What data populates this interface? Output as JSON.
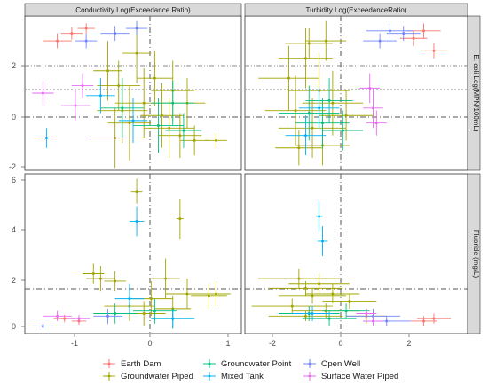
{
  "chart_data": {
    "type": "scatter",
    "error_bars": true,
    "facet_columns": [
      "Conductivity Log(Exceedance Ratio)",
      "Turbidity Log(ExceedanceRatio)"
    ],
    "facet_rows": [
      "E. coli Log(MPN/100mL)",
      "Fluoride (mg/L)"
    ],
    "x_ticks": {
      "conductivity": [
        "-1",
        "0",
        "1"
      ],
      "turbidity": [
        "-2",
        "0",
        "2"
      ]
    },
    "y_ticks": {
      "ecoli": [
        "-2",
        "0",
        "2"
      ],
      "fluoride": [
        "0",
        "2",
        "4",
        "6"
      ]
    },
    "xlim": {
      "conductivity": [
        -1.75,
        1.25
      ],
      "turbidity": [
        -2.8,
        3.8
      ]
    },
    "ylim": {
      "ecoli": [
        -2.2,
        4.0
      ],
      "fluoride": [
        -0.2,
        6.2
      ]
    },
    "reference_lines": {
      "vertical_x": 0,
      "ecoli_horizontal": [
        0,
        1.1,
        1.85
      ],
      "fluoride_horizontal": [
        1.5
      ]
    },
    "legend": {
      "placement": "bottom",
      "entries": [
        {
          "label": "Earth Dam",
          "color": "#f8766d"
        },
        {
          "label": "Groundwater Piped",
          "color": "#a3a500"
        },
        {
          "label": "Groundwater Point",
          "color": "#00bf7d"
        },
        {
          "label": "Mixed Tank",
          "color": "#00b0f6"
        },
        {
          "label": "Open Well",
          "color": "#6f84ff"
        },
        {
          "label": "Surface Water Piped",
          "color": "#e76bf3"
        }
      ]
    },
    "series": [
      {
        "name": "Earth Dam",
        "color": "#f8766d",
        "points": {
          "cond_ecoli": [
            [
              -1.3,
              3.0,
              0.2,
              0.3
            ],
            [
              -1.1,
              3.3,
              0.15,
              0.25
            ],
            [
              -0.9,
              3.5,
              0.12,
              0.2
            ]
          ],
          "turb_ecoli": [
            [
              2.5,
              3.4,
              0.5,
              0.3
            ],
            [
              2.8,
              2.6,
              0.4,
              0.3
            ],
            [
              2.2,
              3.1,
              0.4,
              0.3
            ]
          ],
          "cond_fluor": [
            [
              -1.2,
              0.4,
              0.15,
              0.15
            ],
            [
              -1.0,
              0.3,
              0.1,
              0.15
            ]
          ],
          "turb_fluor": [
            [
              2.8,
              0.4,
              0.5,
              0.2
            ],
            [
              2.5,
              0.3,
              0.4,
              0.2
            ]
          ]
        }
      },
      {
        "name": "Groundwater Piped",
        "color": "#a3a500",
        "points": {
          "cond_ecoli": [
            [
              -0.6,
              1.8,
              0.2,
              1.2
            ],
            [
              -0.45,
              1.2,
              0.3,
              1.0
            ],
            [
              -0.4,
              0.2,
              0.35,
              1.3
            ],
            [
              -0.3,
              -0.3,
              0.3,
              1.5
            ],
            [
              -0.2,
              2.5,
              0.2,
              1.2
            ],
            [
              -0.1,
              0.5,
              0.4,
              1.4
            ],
            [
              0.05,
              1.5,
              0.25,
              1.1
            ],
            [
              0.15,
              0.0,
              0.3,
              1.3
            ],
            [
              0.25,
              -0.5,
              0.35,
              1.2
            ],
            [
              0.4,
              -0.8,
              0.3,
              0.9
            ],
            [
              0.5,
              0.5,
              0.25,
              1.0
            ],
            [
              0.6,
              -1.0,
              0.2,
              0.6
            ],
            [
              0.9,
              -1.0,
              0.15,
              0.3
            ],
            [
              -0.5,
              -0.9,
              0.4,
              1.2
            ],
            [
              0.3,
              1.0,
              0.3,
              1.2
            ]
          ],
          "turb_ecoli": [
            [
              -1.5,
              1.5,
              0.9,
              1.3
            ],
            [
              -1.3,
              0.2,
              0.9,
              1.4
            ],
            [
              -1.0,
              2.3,
              0.8,
              1.2
            ],
            [
              -0.8,
              -0.5,
              1.0,
              1.2
            ],
            [
              -0.6,
              1.0,
              0.9,
              1.5
            ],
            [
              -0.4,
              3.0,
              0.6,
              0.8
            ],
            [
              -0.5,
              -1.2,
              0.8,
              0.8
            ],
            [
              -1.2,
              -1.3,
              0.7,
              0.7
            ],
            [
              -0.2,
              0.5,
              0.9,
              1.3
            ],
            [
              0.2,
              0.0,
              0.8,
              1.0
            ],
            [
              -0.9,
              2.9,
              0.7,
              0.6
            ]
          ],
          "cond_fluor": [
            [
              -0.8,
              2.2,
              0.15,
              0.4
            ],
            [
              -0.7,
              2.0,
              0.2,
              0.5
            ],
            [
              -0.5,
              1.9,
              0.15,
              0.4
            ],
            [
              -0.2,
              5.5,
              0.08,
              0.5
            ],
            [
              0.4,
              4.4,
              0.05,
              0.8
            ],
            [
              0.2,
              2.0,
              0.2,
              0.8
            ],
            [
              0.0,
              1.2,
              0.3,
              0.7
            ],
            [
              -0.3,
              0.9,
              0.35,
              0.6
            ],
            [
              0.5,
              1.4,
              0.3,
              0.6
            ],
            [
              0.8,
              1.3,
              0.25,
              0.5
            ],
            [
              0.9,
              1.4,
              0.2,
              0.5
            ],
            [
              -0.1,
              0.6,
              0.3,
              0.5
            ],
            [
              0.3,
              0.8,
              0.25,
              0.5
            ]
          ],
          "turb_fluor": [
            [
              -1.2,
              2.0,
              1.2,
              0.4
            ],
            [
              -1.0,
              1.6,
              1.1,
              0.3
            ],
            [
              -0.8,
              1.3,
              1.0,
              0.3
            ],
            [
              -0.6,
              1.8,
              0.9,
              0.4
            ],
            [
              -1.4,
              0.9,
              1.2,
              0.3
            ],
            [
              -0.4,
              0.7,
              1.0,
              0.3
            ],
            [
              -1.0,
              0.5,
              1.1,
              0.2
            ],
            [
              -0.2,
              1.4,
              0.8,
              0.4
            ],
            [
              0.3,
              1.1,
              0.8,
              0.3
            ],
            [
              0.8,
              0.5,
              0.6,
              0.3
            ]
          ]
        }
      },
      {
        "name": "Groundwater Point",
        "color": "#00bf7d",
        "points": {
          "cond_ecoli": [
            [
              -0.4,
              0.3,
              0.3,
              1.2
            ],
            [
              0.1,
              -0.4,
              0.35,
              1.1
            ],
            [
              0.3,
              0.5,
              0.3,
              0.9
            ],
            [
              0.45,
              -0.6,
              0.25,
              0.7
            ]
          ],
          "turb_ecoli": [
            [
              -0.9,
              0.1,
              0.9,
              1.1
            ],
            [
              -0.5,
              -0.3,
              0.8,
              1.0
            ],
            [
              -0.3,
              0.6,
              0.7,
              0.9
            ],
            [
              0.1,
              -0.6,
              0.6,
              0.8
            ]
          ],
          "cond_fluor": [
            [
              -0.5,
              0.6,
              0.3,
              0.4
            ],
            [
              0.05,
              0.7,
              0.3,
              0.5
            ],
            [
              0.3,
              0.4,
              0.3,
              0.4
            ]
          ],
          "turb_fluor": [
            [
              -0.9,
              0.6,
              0.9,
              0.3
            ],
            [
              -0.3,
              0.4,
              0.8,
              0.3
            ],
            [
              0.2,
              0.7,
              0.7,
              0.3
            ]
          ]
        }
      },
      {
        "name": "Mixed Tank",
        "color": "#00b0f6",
        "points": {
          "cond_ecoli": [
            [
              -1.45,
              -0.9,
              0.12,
              0.4
            ],
            [
              -0.7,
              0.8,
              0.2,
              0.7
            ],
            [
              -0.25,
              -0.2,
              0.2,
              0.9
            ]
          ],
          "turb_ecoli": [
            [
              -1.0,
              -0.8,
              0.6,
              0.8
            ],
            [
              -0.6,
              0.3,
              0.6,
              0.8
            ]
          ],
          "cond_fluor": [
            [
              -0.2,
              4.3,
              0.1,
              0.6
            ],
            [
              -0.3,
              1.2,
              0.2,
              0.6
            ],
            [
              0.3,
              0.4,
              0.3,
              0.4
            ]
          ],
          "turb_fluor": [
            [
              -0.6,
              4.5,
              0.1,
              0.6
            ],
            [
              -0.5,
              3.5,
              0.15,
              0.6
            ],
            [
              -0.8,
              0.6,
              0.6,
              0.3
            ]
          ]
        }
      },
      {
        "name": "Open Well",
        "color": "#6f84ff",
        "points": {
          "cond_ecoli": [
            [
              -0.5,
              3.3,
              0.2,
              0.3
            ],
            [
              -0.2,
              3.5,
              0.15,
              0.3
            ],
            [
              -0.9,
              3.0,
              0.15,
              0.3
            ]
          ],
          "turb_ecoli": [
            [
              1.5,
              3.4,
              0.7,
              0.3
            ],
            [
              1.9,
              3.3,
              0.5,
              0.3
            ],
            [
              1.2,
              3.0,
              0.5,
              0.3
            ]
          ],
          "cond_fluor": [
            [
              -1.5,
              0.1,
              0.15,
              0.1
            ],
            [
              -0.6,
              0.5,
              0.2,
              0.3
            ]
          ],
          "turb_fluor": [
            [
              1.0,
              0.5,
              0.8,
              0.3
            ],
            [
              1.4,
              0.3,
              0.7,
              0.2
            ]
          ]
        }
      },
      {
        "name": "Surface Water Piped",
        "color": "#e76bf3",
        "points": {
          "cond_ecoli": [
            [
              -1.5,
              0.9,
              0.15,
              0.5
            ],
            [
              -1.05,
              0.4,
              0.2,
              0.6
            ],
            [
              -0.95,
              1.2,
              0.15,
              0.5
            ]
          ],
          "turb_ecoli": [
            [
              1.0,
              0.3,
              0.3,
              0.8
            ],
            [
              0.9,
              1.1,
              0.3,
              0.6
            ],
            [
              1.1,
              -0.3,
              0.3,
              0.5
            ]
          ],
          "cond_fluor": [
            [
              -1.3,
              0.5,
              0.2,
              0.2
            ],
            [
              -1.0,
              0.4,
              0.15,
              0.15
            ]
          ],
          "turb_fluor": [
            [
              1.0,
              0.3,
              0.3,
              0.2
            ],
            [
              0.8,
              0.6,
              0.3,
              0.2
            ]
          ]
        }
      }
    ]
  }
}
